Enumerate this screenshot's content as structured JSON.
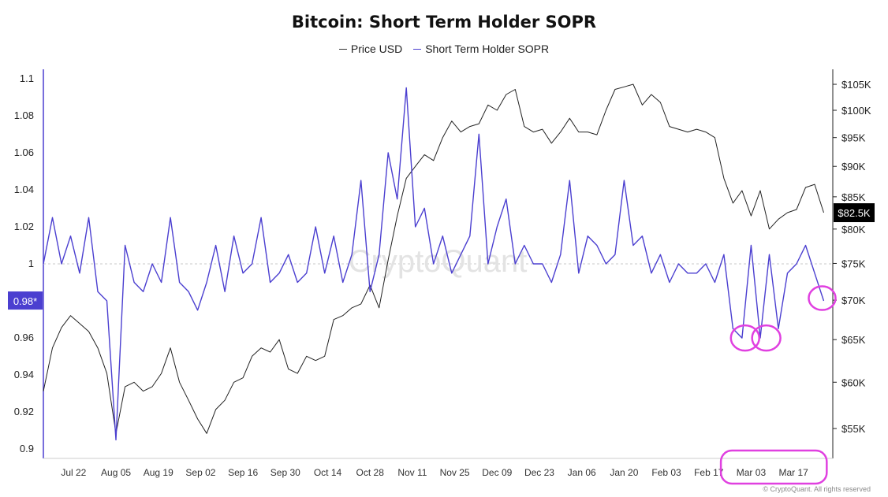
{
  "title": "Bitcoin: Short Term Holder SOPR",
  "legend": [
    {
      "label": "Price USD",
      "color": "#333333"
    },
    {
      "label": "Short Term Holder SOPR",
      "color": "#4b3fd0"
    }
  ],
  "watermark": "CryptoQuant",
  "credit": "© CryptoQuant. All rights reserved",
  "current_labels": {
    "sopr": "0.98*",
    "price": "$82.5K"
  },
  "colors": {
    "sopr": "#4b3fd0",
    "price": "#222222",
    "highlight": "#e040e0",
    "sopr_label_bg": "#4b3fd0",
    "price_label_bg": "#000000"
  },
  "chart_data": {
    "type": "line",
    "title": "Bitcoin: Short Term Holder SOPR",
    "x_tick_labels": [
      "Jul 22",
      "Aug 05",
      "Aug 19",
      "Sep 02",
      "Sep 16",
      "Sep 30",
      "Oct 14",
      "Oct 28",
      "Nov 11",
      "Nov 25",
      "Dec 09",
      "Dec 23",
      "Jan 06",
      "Jan 20",
      "Feb 03",
      "Feb 17",
      "Mar 03",
      "Mar 17"
    ],
    "y_left_ticks": [
      "0.9",
      "0.92",
      "0.94",
      "0.96",
      "0.98",
      "1",
      "1.02",
      "1.04",
      "1.06",
      "1.08",
      "1.1"
    ],
    "y_left_range": [
      0.895,
      1.105
    ],
    "y_right_ticks": [
      "$55K",
      "$60K",
      "$65K",
      "$70K",
      "$75K",
      "$80K",
      "$85K",
      "$90K",
      "$95K",
      "$100K",
      "$105K"
    ],
    "y_right_range": [
      52000,
      108000
    ],
    "y_right_scale": "log",
    "reference_line": 1,
    "series": [
      {
        "name": "Short Term Holder SOPR",
        "axis": "left",
        "x": [
          "Jul 12",
          "Jul 15",
          "Jul 18",
          "Jul 21",
          "Jul 24",
          "Jul 27",
          "Jul 30",
          "Aug 02",
          "Aug 05",
          "Aug 08",
          "Aug 11",
          "Aug 14",
          "Aug 17",
          "Aug 20",
          "Aug 23",
          "Aug 26",
          "Aug 29",
          "Sep 01",
          "Sep 04",
          "Sep 07",
          "Sep 10",
          "Sep 13",
          "Sep 16",
          "Sep 19",
          "Sep 22",
          "Sep 25",
          "Sep 28",
          "Oct 01",
          "Oct 04",
          "Oct 07",
          "Oct 10",
          "Oct 13",
          "Oct 16",
          "Oct 19",
          "Oct 22",
          "Oct 25",
          "Oct 28",
          "Oct 31",
          "Nov 03",
          "Nov 06",
          "Nov 09",
          "Nov 12",
          "Nov 15",
          "Nov 18",
          "Nov 21",
          "Nov 24",
          "Nov 27",
          "Nov 30",
          "Dec 03",
          "Dec 06",
          "Dec 09",
          "Dec 12",
          "Dec 15",
          "Dec 18",
          "Dec 21",
          "Dec 24",
          "Dec 27",
          "Dec 30",
          "Jan 02",
          "Jan 05",
          "Jan 08",
          "Jan 11",
          "Jan 14",
          "Jan 17",
          "Jan 20",
          "Jan 23",
          "Jan 26",
          "Jan 29",
          "Feb 01",
          "Feb 04",
          "Feb 07",
          "Feb 10",
          "Feb 13",
          "Feb 16",
          "Feb 19",
          "Feb 22",
          "Feb 25",
          "Feb 28",
          "Mar 03",
          "Mar 06",
          "Mar 09",
          "Mar 12",
          "Mar 15",
          "Mar 18",
          "Mar 21",
          "Mar 24",
          "Mar 27"
        ],
        "values": [
          1.0,
          1.025,
          1.0,
          1.015,
          0.995,
          1.025,
          0.985,
          0.98,
          0.905,
          1.01,
          0.99,
          0.985,
          1.0,
          0.99,
          1.025,
          0.99,
          0.985,
          0.975,
          0.99,
          1.01,
          0.985,
          1.015,
          0.995,
          1.0,
          1.025,
          0.99,
          0.995,
          1.005,
          0.99,
          0.995,
          1.02,
          0.995,
          1.015,
          0.99,
          1.005,
          1.045,
          0.985,
          1.005,
          1.06,
          1.035,
          1.095,
          1.02,
          1.03,
          1.0,
          1.015,
          0.995,
          1.005,
          1.015,
          1.07,
          1.0,
          1.02,
          1.035,
          1.0,
          1.01,
          1.0,
          1.0,
          0.99,
          1.005,
          1.045,
          0.995,
          1.015,
          1.01,
          1.0,
          1.005,
          1.045,
          1.01,
          1.015,
          0.995,
          1.005,
          0.99,
          1.0,
          0.995,
          0.995,
          1.0,
          0.99,
          1.005,
          0.965,
          0.96,
          1.01,
          0.96,
          1.005,
          0.965,
          0.995,
          1.0,
          1.01,
          0.995,
          0.98
        ]
      },
      {
        "name": "Price USD",
        "axis": "right",
        "x": [
          "Jul 12",
          "Jul 15",
          "Jul 18",
          "Jul 21",
          "Jul 24",
          "Jul 27",
          "Jul 30",
          "Aug 02",
          "Aug 05",
          "Aug 08",
          "Aug 11",
          "Aug 14",
          "Aug 17",
          "Aug 20",
          "Aug 23",
          "Aug 26",
          "Aug 29",
          "Sep 01",
          "Sep 04",
          "Sep 07",
          "Sep 10",
          "Sep 13",
          "Sep 16",
          "Sep 19",
          "Sep 22",
          "Sep 25",
          "Sep 28",
          "Oct 01",
          "Oct 04",
          "Oct 07",
          "Oct 10",
          "Oct 13",
          "Oct 16",
          "Oct 19",
          "Oct 22",
          "Oct 25",
          "Oct 28",
          "Oct 31",
          "Nov 03",
          "Nov 06",
          "Nov 09",
          "Nov 12",
          "Nov 15",
          "Nov 18",
          "Nov 21",
          "Nov 24",
          "Nov 27",
          "Nov 30",
          "Dec 03",
          "Dec 06",
          "Dec 09",
          "Dec 12",
          "Dec 15",
          "Dec 18",
          "Dec 21",
          "Dec 24",
          "Dec 27",
          "Dec 30",
          "Jan 02",
          "Jan 05",
          "Jan 08",
          "Jan 11",
          "Jan 14",
          "Jan 17",
          "Jan 20",
          "Jan 23",
          "Jan 26",
          "Jan 29",
          "Feb 01",
          "Feb 04",
          "Feb 07",
          "Feb 10",
          "Feb 13",
          "Feb 16",
          "Feb 19",
          "Feb 22",
          "Feb 25",
          "Feb 28",
          "Mar 03",
          "Mar 06",
          "Mar 09",
          "Mar 12",
          "Mar 15",
          "Mar 18",
          "Mar 21",
          "Mar 24",
          "Mar 27"
        ],
        "values": [
          59000,
          64000,
          66500,
          68000,
          67000,
          66000,
          64000,
          61000,
          54500,
          59500,
          60000,
          59000,
          59500,
          61000,
          64000,
          60000,
          58000,
          56000,
          54500,
          57000,
          58000,
          60000,
          60500,
          63000,
          64000,
          63500,
          65000,
          61500,
          61000,
          63000,
          62500,
          63000,
          67500,
          68000,
          69000,
          69500,
          72000,
          69000,
          75500,
          82000,
          88000,
          90000,
          92000,
          91000,
          95000,
          98000,
          96000,
          97000,
          97500,
          101000,
          100000,
          103000,
          104000,
          97000,
          96000,
          96500,
          94000,
          96000,
          98500,
          96000,
          96000,
          95500,
          100000,
          104000,
          104500,
          105000,
          101000,
          103000,
          101500,
          97000,
          96500,
          96000,
          96500,
          96000,
          95000,
          88000,
          84000,
          86000,
          82000,
          86000,
          80000,
          81500,
          82500,
          83000,
          86500,
          87000,
          82500
        ]
      }
    ],
    "highlight_markers": [
      "Mar 01",
      "Mar 07",
      "Mar 27",
      "Mar 03 – Mar 17 (x-axis)"
    ]
  }
}
